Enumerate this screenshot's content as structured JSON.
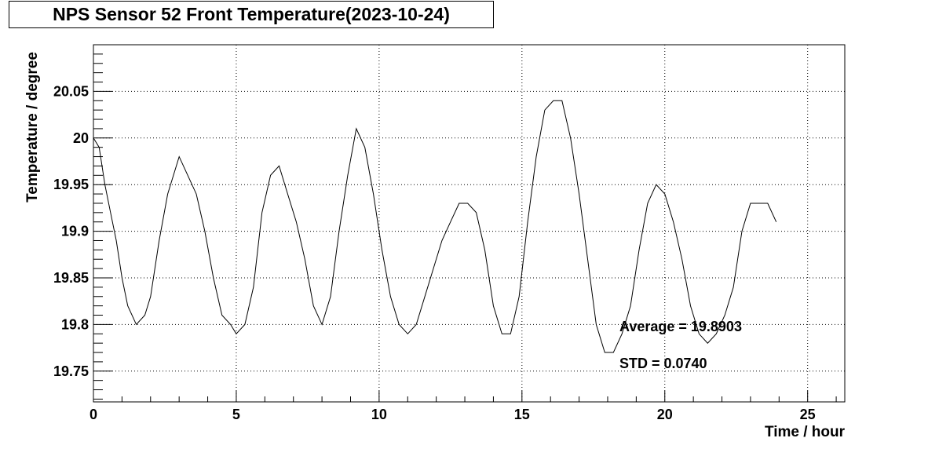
{
  "chart_data": {
    "type": "line",
    "title": "NPS Sensor 52 Front Temperature(2023-10-24)",
    "xlabel": "Time / hour",
    "ylabel": "Temperature / degree",
    "xlim": [
      0,
      26.3
    ],
    "ylim": [
      19.717,
      20.1
    ],
    "x_ticks": [
      0,
      5,
      10,
      15,
      20,
      25
    ],
    "y_ticks": [
      19.75,
      19.8,
      19.85,
      19.9,
      19.95,
      20,
      20.05
    ],
    "y_tick_labels": [
      "19.75",
      "19.8",
      "19.85",
      "19.9",
      "19.95",
      "20",
      "20.05"
    ],
    "grid": true,
    "series": [
      {
        "x": [
          0.0,
          0.2,
          0.4,
          0.6,
          0.8,
          1.0,
          1.2,
          1.5,
          1.8,
          2.0,
          2.3,
          2.6,
          3.0,
          3.3,
          3.6,
          3.9,
          4.2,
          4.5,
          4.8,
          5.0,
          5.3,
          5.6,
          5.9,
          6.2,
          6.5,
          6.8,
          7.1,
          7.4,
          7.7,
          8.0,
          8.3,
          8.6,
          8.9,
          9.2,
          9.5,
          9.8,
          10.1,
          10.4,
          10.7,
          11.0,
          11.3,
          11.6,
          11.9,
          12.2,
          12.5,
          12.8,
          13.1,
          13.4,
          13.7,
          14.0,
          14.3,
          14.6,
          14.9,
          15.2,
          15.5,
          15.8,
          16.1,
          16.4,
          16.7,
          17.0,
          17.3,
          17.6,
          17.9,
          18.2,
          18.5,
          18.8,
          19.1,
          19.4,
          19.7,
          20.0,
          20.3,
          20.6,
          20.9,
          21.2,
          21.5,
          21.8,
          22.1,
          22.4,
          22.7,
          23.0,
          23.3,
          23.6,
          23.9
        ],
        "values": [
          20.0,
          19.99,
          19.95,
          19.92,
          19.89,
          19.85,
          19.82,
          19.8,
          19.81,
          19.83,
          19.89,
          19.94,
          19.98,
          19.96,
          19.94,
          19.9,
          19.85,
          19.81,
          19.8,
          19.79,
          19.8,
          19.84,
          19.92,
          19.96,
          19.97,
          19.94,
          19.91,
          19.87,
          19.82,
          19.8,
          19.83,
          19.9,
          19.96,
          20.01,
          19.99,
          19.94,
          19.88,
          19.83,
          19.8,
          19.79,
          19.8,
          19.83,
          19.86,
          19.89,
          19.91,
          19.93,
          19.93,
          19.92,
          19.88,
          19.82,
          19.79,
          19.79,
          19.83,
          19.91,
          19.98,
          20.03,
          20.04,
          20.04,
          20.0,
          19.94,
          19.87,
          19.8,
          19.77,
          19.77,
          19.79,
          19.82,
          19.88,
          19.93,
          19.95,
          19.94,
          19.91,
          19.87,
          19.82,
          19.79,
          19.78,
          19.79,
          19.81,
          19.84,
          19.9,
          19.93,
          19.93,
          19.93,
          19.91
        ]
      }
    ],
    "annotations": [
      "Average = 19.8903",
      "STD = 0.0740"
    ]
  },
  "colors": {
    "line": "#000000",
    "grid": "#000000",
    "background": "#ffffff"
  }
}
